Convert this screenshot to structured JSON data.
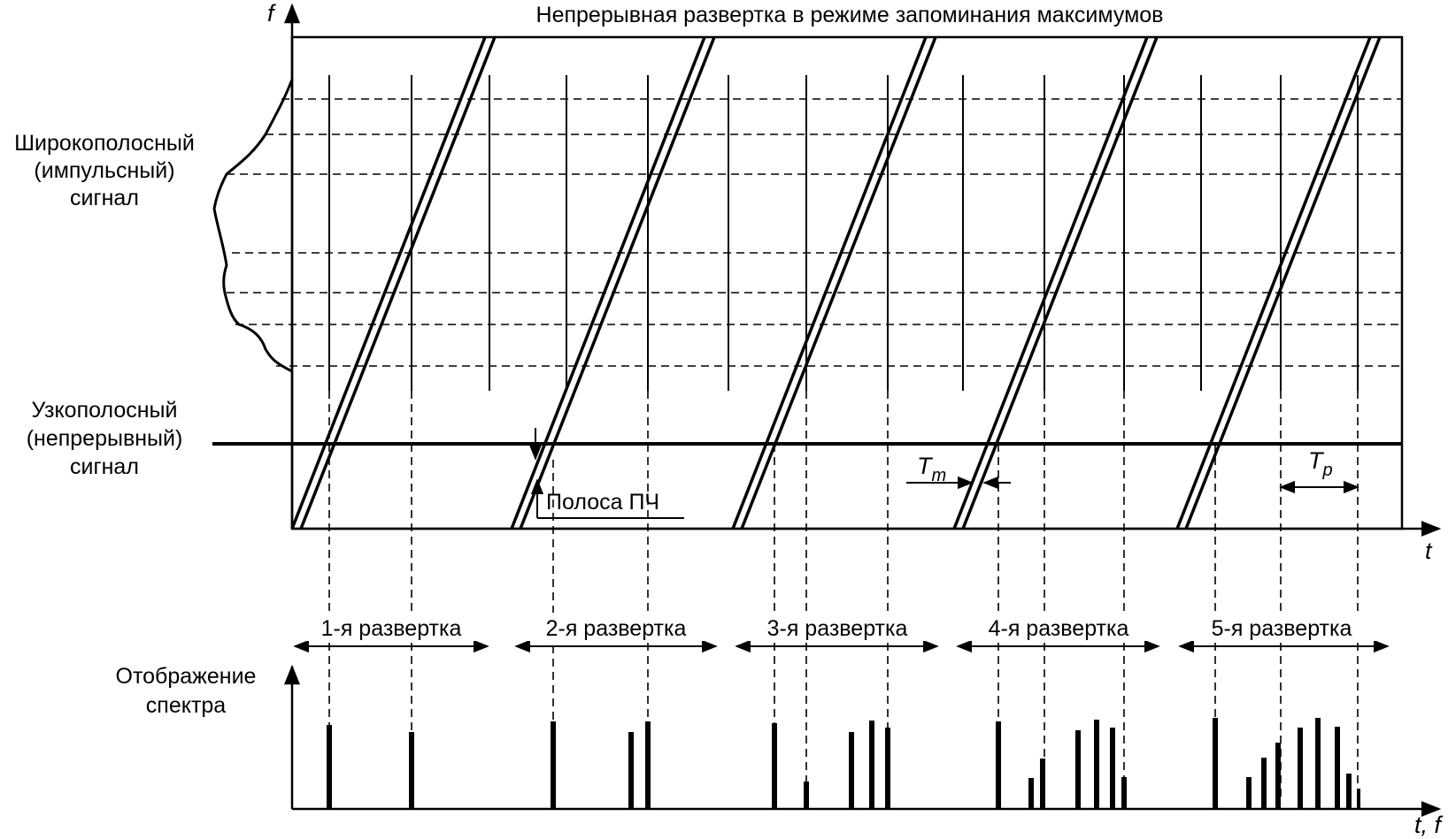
{
  "title": "Непрерывная развертка в режиме запоминания максимумов",
  "axes": {
    "f_label": "f",
    "t_label": "t",
    "tf_label": "t, f",
    "spectrum_label_line1": "Отображение",
    "spectrum_label_line2": "спектра"
  },
  "signals": {
    "wideband": [
      "Широкополосный",
      "(импульсный)",
      "сигнал"
    ],
    "narrowband": [
      "Узкополосный",
      "(непрерывный)",
      "сигнал"
    ]
  },
  "annotations": {
    "if_band": "Полоса ПЧ",
    "tm_main": "T",
    "tm_sub": "m",
    "tp_main": "T",
    "tp_sub": "p"
  },
  "sweeps": [
    "1-я развертка",
    "2-я развертка",
    "3-я развертка",
    "4-я развертка",
    "5-я развертка"
  ]
}
